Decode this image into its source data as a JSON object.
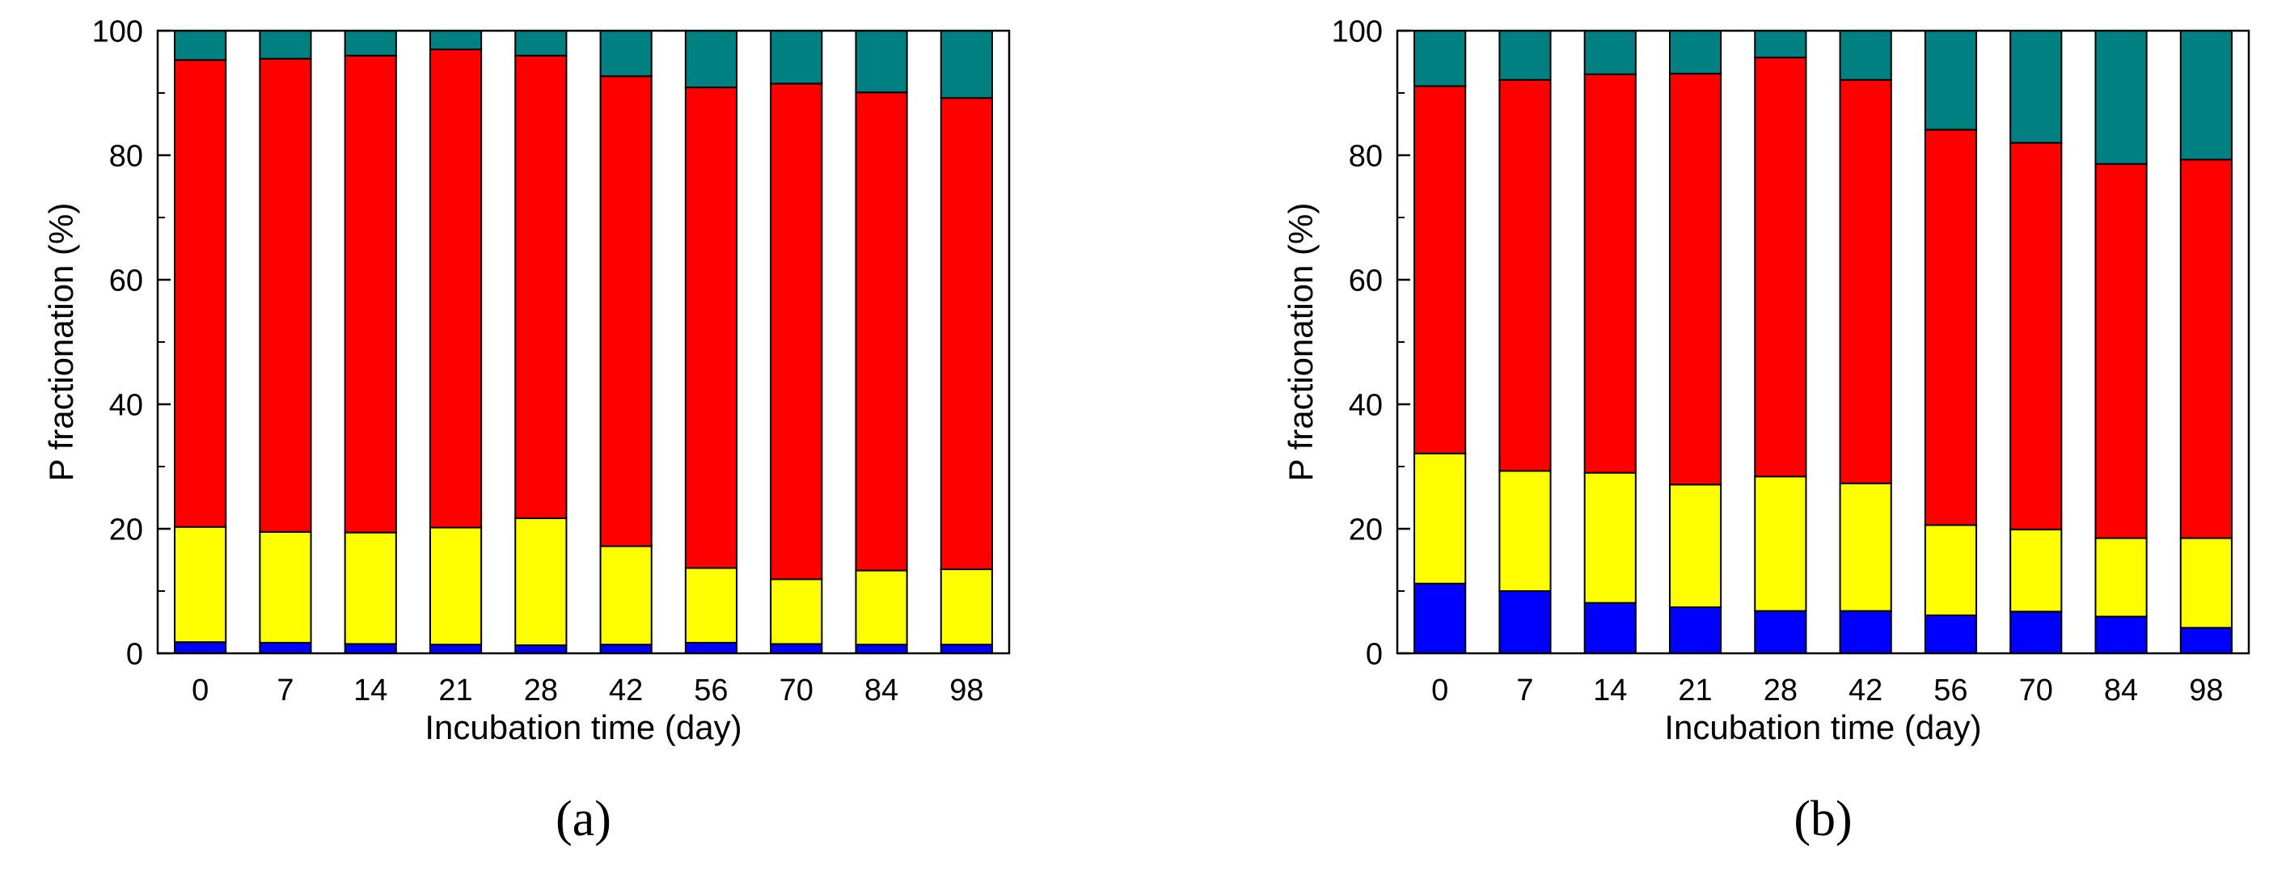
{
  "colors": {
    "segment_1": "#0000FF",
    "segment_2": "#FFFF00",
    "segment_3": "#FF0000",
    "segment_4": "#008080",
    "frame": "#000000",
    "background": "#FFFFFF"
  },
  "chart_data": [
    {
      "type": "bar",
      "stacked": true,
      "panel_label": "(a)",
      "title": "",
      "xlabel": "Incubation time (day)",
      "ylabel": "P fractionation (%)",
      "ylim": [
        0,
        100
      ],
      "yticks": [
        0,
        20,
        40,
        60,
        80,
        100
      ],
      "yticks_minor": [
        10,
        30,
        50,
        70,
        90
      ],
      "categories": [
        "0",
        "7",
        "14",
        "21",
        "28",
        "42",
        "56",
        "70",
        "84",
        "98"
      ],
      "legend": "none",
      "series": [
        {
          "name": "segment_1",
          "color": "#0000FF",
          "values": [
            1.8,
            1.7,
            1.5,
            1.4,
            1.3,
            1.4,
            1.7,
            1.5,
            1.4,
            1.4
          ]
        },
        {
          "name": "segment_2",
          "color": "#FFFF00",
          "values": [
            18.5,
            17.8,
            17.9,
            18.8,
            20.4,
            15.8,
            12.0,
            10.4,
            11.9,
            12.1
          ]
        },
        {
          "name": "segment_3",
          "color": "#FF0000",
          "values": [
            75.0,
            76.0,
            76.6,
            76.8,
            74.3,
            75.5,
            77.2,
            79.6,
            76.8,
            75.7
          ]
        },
        {
          "name": "segment_4",
          "color": "#008080",
          "values": [
            4.7,
            4.5,
            4.0,
            3.0,
            4.0,
            7.3,
            9.1,
            8.5,
            9.9,
            10.8
          ]
        }
      ]
    },
    {
      "type": "bar",
      "stacked": true,
      "panel_label": "(b)",
      "title": "",
      "xlabel": "Incubation time (day)",
      "ylabel": "P fractionation (%)",
      "ylim": [
        0,
        100
      ],
      "yticks": [
        0,
        20,
        40,
        60,
        80,
        100
      ],
      "yticks_minor": [
        10,
        30,
        50,
        70,
        90
      ],
      "categories": [
        "0",
        "7",
        "14",
        "21",
        "28",
        "42",
        "56",
        "70",
        "84",
        "98"
      ],
      "legend": "none",
      "series": [
        {
          "name": "segment_1",
          "color": "#0000FF",
          "values": [
            11.2,
            10.0,
            8.1,
            7.4,
            6.8,
            6.8,
            6.1,
            6.7,
            5.9,
            4.1
          ]
        },
        {
          "name": "segment_2",
          "color": "#FFFF00",
          "values": [
            20.9,
            19.3,
            20.9,
            19.7,
            21.6,
            20.5,
            14.5,
            13.2,
            12.6,
            14.4
          ]
        },
        {
          "name": "segment_3",
          "color": "#FF0000",
          "values": [
            59.0,
            62.8,
            64.0,
            66.0,
            67.3,
            64.8,
            63.5,
            62.1,
            60.1,
            60.8
          ]
        },
        {
          "name": "segment_4",
          "color": "#008080",
          "values": [
            8.9,
            7.9,
            7.0,
            6.9,
            4.3,
            7.9,
            15.9,
            18.0,
            21.4,
            20.7
          ]
        }
      ]
    }
  ]
}
